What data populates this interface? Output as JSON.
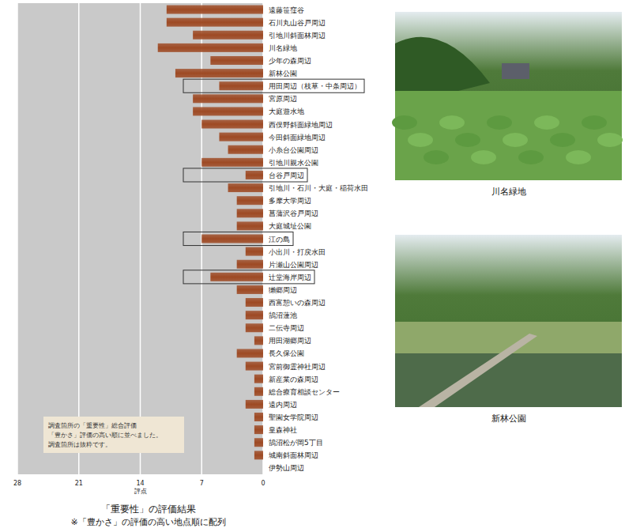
{
  "chart_data": {
    "type": "bar",
    "orientation": "horizontal",
    "title": "「重要性」の評価結果",
    "subtitle": "※「豊かさ」の評価の高い地点順に配列",
    "xlabel": "評点",
    "categories": [
      "遠藤笹窪谷",
      "石川丸山谷戸周辺",
      "引地川斜面林周辺",
      "川名緑地",
      "少年の森周辺",
      "新林公園",
      "用田周辺（枝草・中条周辺）",
      "宮原周辺",
      "大庭遊水地",
      "西俣野斜面緑地周辺",
      "今田斜面緑地周辺",
      "小糸台公園周辺",
      "引地川親水公園",
      "台谷戸周辺",
      "引地川・石川・大庭・稲荷水田",
      "多摩大学周辺",
      "菖蒲沢谷戸周辺",
      "大庭城址公園",
      "江の島",
      "小出川・打戻水田",
      "片瀬山公園周辺",
      "辻堂海岸周辺",
      "獺郷周辺",
      "西富憩いの森周辺",
      "鵠沼蓮池",
      "二伝寺周辺",
      "用田湖郷周辺",
      "長久保公園",
      "宮前御霊神社周辺",
      "新産業の森周辺",
      "総合療育相談センター",
      "遠内周辺",
      "聖園女学院周辺",
      "皇森神社",
      "鵠沼松が岡5丁目",
      "城南斜面林周辺",
      "伊勢山周辺"
    ],
    "values": [
      11,
      11,
      8,
      12,
      6,
      10,
      5,
      8,
      8,
      7,
      5,
      4,
      7,
      2,
      4,
      3,
      3,
      3,
      7,
      2,
      3,
      6,
      3,
      2,
      2,
      2,
      1,
      3,
      2,
      1,
      1,
      2,
      1,
      1,
      1,
      1,
      0
    ],
    "color": "#9e4a24",
    "xlim": [
      28,
      0
    ],
    "xticks": [
      28,
      21,
      14,
      7,
      0
    ],
    "grid": true,
    "highlighted": [
      6,
      13,
      18,
      21
    ],
    "note": [
      "調査箇所の「重要性」総合評価",
      "「豊かさ」評価の高い順に並べました。",
      "調査箇所は抜粋です。"
    ]
  },
  "photos": [
    {
      "caption": "川名緑地"
    },
    {
      "caption": "新林公園"
    }
  ]
}
